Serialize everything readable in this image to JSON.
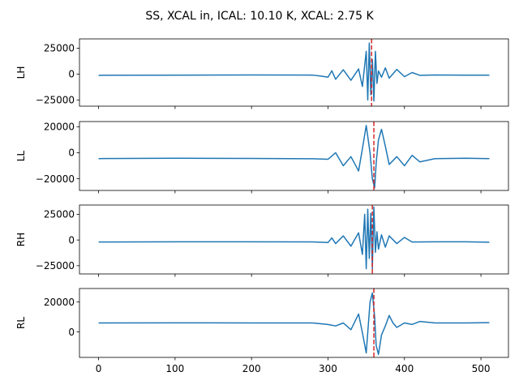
{
  "chart_data": {
    "type": "line",
    "title": "SS, XCAL in, ICAL: 10.10 K, XCAL: 2.75 K",
    "xlabel": "",
    "xlim": [
      -25,
      536
    ],
    "xticks": [
      0,
      100,
      200,
      300,
      400,
      500
    ],
    "xtick_labels": [
      "0",
      "100",
      "200",
      "300",
      "400",
      "500"
    ],
    "line_color": "#1f77b4",
    "marker_color": "#d62728",
    "panels": [
      {
        "ylabel": "LH",
        "ylim": [
          -31000,
          34000
        ],
        "yticks": [
          -25000,
          0,
          25000
        ],
        "ytick_labels": [
          "−25000",
          "0",
          "25000"
        ],
        "marker_x": 357,
        "series": [
          {
            "x": [
              0,
              100,
              200,
              280,
              290,
              300,
              305,
              310,
              320,
              330,
              340,
              345,
              350,
              352,
              354,
              356,
              358,
              360,
              362,
              364,
              366,
              370,
              375,
              380,
              390,
              400,
              410,
              420,
              440,
              480,
              511
            ],
            "values": [
              -1200,
              -1000,
              -900,
              -1000,
              -1800,
              -3000,
              3200,
              -5000,
              4200,
              -6000,
              5000,
              -12000,
              22000,
              -25000,
              30000,
              -20000,
              14000,
              -26000,
              22000,
              -9000,
              3000,
              -3000,
              6000,
              -4000,
              4500,
              -2500,
              1500,
              -1200,
              -800,
              -1000,
              -1000
            ]
          }
        ]
      },
      {
        "ylabel": "LL",
        "ylim": [
          -29000,
          24000
        ],
        "yticks": [
          -20000,
          0,
          20000
        ],
        "ytick_labels": [
          "−20000",
          "0",
          "20000"
        ],
        "marker_x": 360,
        "series": [
          {
            "x": [
              0,
              100,
              200,
              280,
              300,
              310,
              320,
              330,
              340,
              345,
              350,
              355,
              358,
              361,
              363,
              366,
              370,
              375,
              380,
              390,
              400,
              410,
              420,
              440,
              480,
              511
            ],
            "values": [
              -4500,
              -4200,
              -4400,
              -4600,
              -5000,
              0,
              -10000,
              -3000,
              -14000,
              3000,
              21000,
              0,
              -20000,
              -27000,
              -8000,
              10000,
              18000,
              5000,
              -9000,
              -3000,
              -10000,
              -2000,
              -7000,
              -4500,
              -4200,
              -4500
            ]
          }
        ]
      },
      {
        "ylabel": "RH",
        "ylim": [
          -33000,
          34000
        ],
        "yticks": [
          -25000,
          0,
          25000
        ],
        "ytick_labels": [
          "−25000",
          "0",
          "25000"
        ],
        "marker_x": 358,
        "series": [
          {
            "x": [
              0,
              100,
              200,
              280,
              300,
              305,
              310,
              320,
              330,
              340,
              345,
              348,
              350,
              352,
              354,
              356,
              358,
              360,
              362,
              364,
              366,
              370,
              375,
              380,
              390,
              400,
              410,
              440,
              480,
              511
            ],
            "values": [
              -2000,
              -1800,
              -1800,
              -1900,
              -2500,
              2000,
              -3500,
              4000,
              -6000,
              7000,
              -14000,
              25000,
              -28000,
              30000,
              -18000,
              26000,
              -28000,
              32000,
              -12000,
              8000,
              -9000,
              5000,
              -7000,
              4000,
              -3500,
              2500,
              -2000,
              -1800,
              -1800,
              -2200
            ]
          }
        ]
      },
      {
        "ylabel": "RL",
        "ylim": [
          -17000,
          29000
        ],
        "yticks": [
          0,
          20000
        ],
        "ytick_labels": [
          "0",
          "20000"
        ],
        "marker_x": 360,
        "series": [
          {
            "x": [
              0,
              100,
              200,
              280,
              300,
              310,
              320,
              330,
              340,
              345,
              350,
              355,
              358,
              361,
              363,
              366,
              370,
              375,
              380,
              385,
              390,
              400,
              410,
              420,
              440,
              480,
              511
            ],
            "values": [
              6000,
              6100,
              6000,
              6000,
              5000,
              4000,
              6000,
              1500,
              12000,
              -500,
              -14000,
              20000,
              26000,
              10000,
              -9000,
              -15000,
              -2000,
              4000,
              11000,
              6000,
              3000,
              6000,
              5000,
              7000,
              6000,
              6000,
              6200
            ]
          }
        ]
      }
    ]
  }
}
